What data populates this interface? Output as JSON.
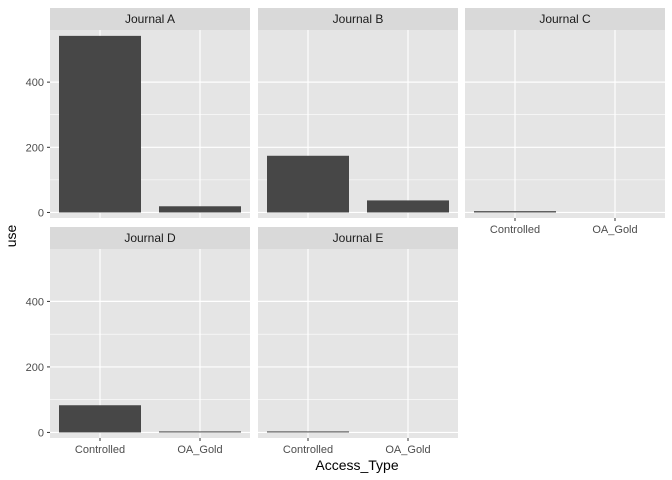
{
  "chart_data": {
    "type": "bar",
    "facet_wrap": true,
    "xlabel": "Access_Type",
    "ylabel": "use",
    "categories": [
      "Controlled",
      "OA_Gold"
    ],
    "ylim": [
      -17,
      560
    ],
    "yticks": [
      0,
      200,
      400
    ],
    "grid": true,
    "colors": {
      "panel_bg": "#e5e5e5",
      "strip_bg": "#d9d9d9",
      "grid_major": "#ffffff",
      "bar_fill": "#474747"
    },
    "facets": [
      {
        "label": "Journal A",
        "values": [
          542,
          19
        ]
      },
      {
        "label": "Journal B",
        "values": [
          174,
          37
        ]
      },
      {
        "label": "Journal C",
        "values": [
          4,
          0
        ]
      },
      {
        "label": "Journal D",
        "values": [
          83,
          3
        ]
      },
      {
        "label": "Journal E",
        "values": [
          3,
          0
        ]
      }
    ]
  }
}
